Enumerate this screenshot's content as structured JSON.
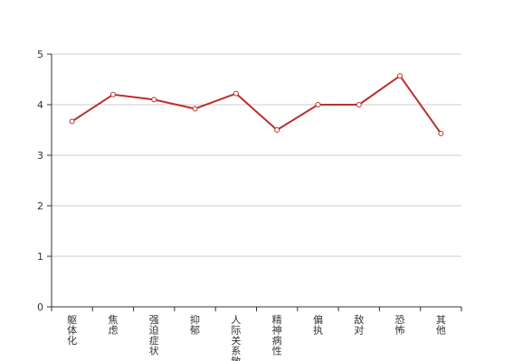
{
  "chart_data": {
    "type": "line",
    "title": "",
    "xlabel": "",
    "ylabel": "",
    "categories": [
      "躯体化",
      "焦虑",
      "强迫症状",
      "抑郁",
      "人际关系敏感",
      "精神病性",
      "偏执",
      "敌对",
      "恐怖",
      "其他"
    ],
    "series": [
      {
        "name": "",
        "values": [
          3.67,
          4.2,
          4.1,
          3.92,
          4.22,
          3.5,
          4.0,
          4.0,
          4.57,
          3.43
        ]
      }
    ],
    "ylim": [
      0,
      5
    ],
    "yticks": [
      "0",
      "1",
      "2",
      "3",
      "4",
      "5"
    ],
    "grid": true,
    "legend": "none",
    "colors": {
      "line": "#b9302d",
      "marker_fill": "#ffffff",
      "grid": "#cccccc",
      "axis": "#333333"
    }
  }
}
